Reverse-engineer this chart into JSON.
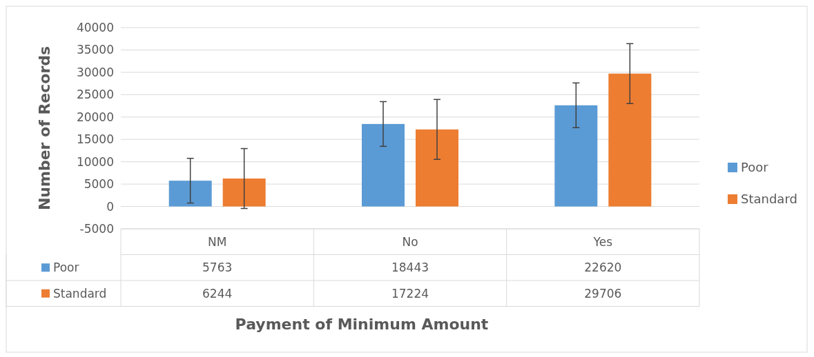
{
  "chart_data": {
    "type": "bar",
    "xlabel": "Payment of Minimum Amount",
    "ylabel": "Number of Records",
    "categories": [
      "NM",
      "No",
      "Yes"
    ],
    "series": [
      {
        "name": "Poor",
        "color": "#5b9bd5",
        "values": [
          5763,
          18443,
          22620
        ],
        "errors": [
          5000,
          5000,
          5000
        ]
      },
      {
        "name": "Standard",
        "color": "#ed7d31",
        "values": [
          6244,
          17224,
          29706
        ],
        "errors": [
          6700,
          6700,
          6700
        ]
      }
    ],
    "ylim": [
      -5000,
      40000
    ],
    "yticks": [
      -5000,
      0,
      5000,
      10000,
      15000,
      20000,
      25000,
      30000,
      35000,
      40000
    ],
    "grid": "y",
    "legend": "right",
    "data_labels": true
  }
}
